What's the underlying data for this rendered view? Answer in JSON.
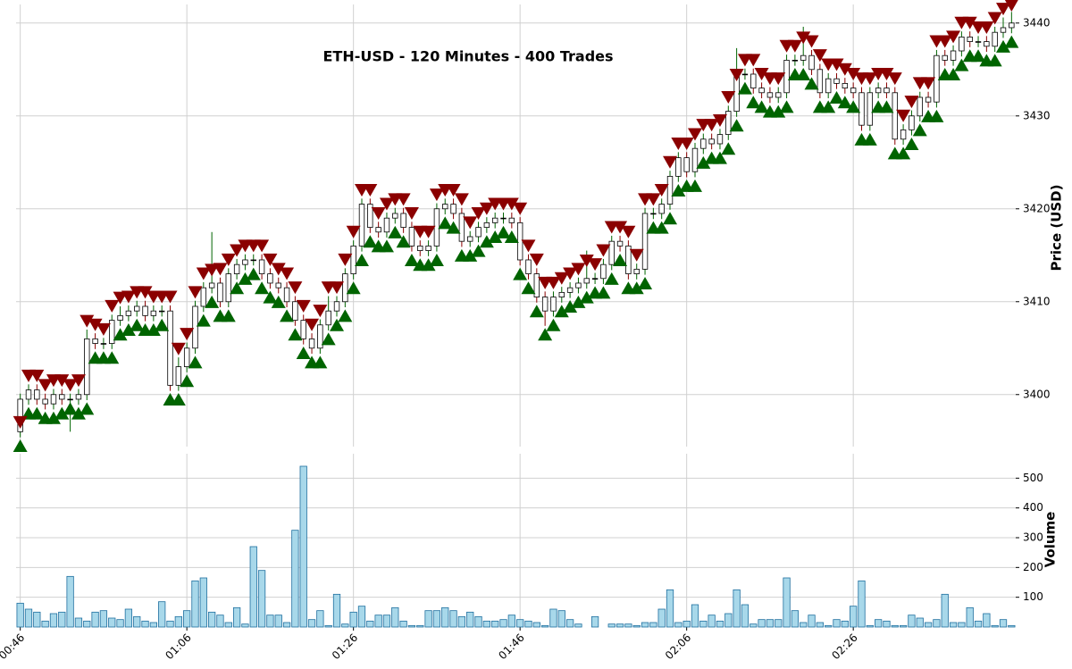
{
  "chart_data": [
    {
      "type": "candlestick",
      "title": "ETH-USD - 120 Minutes - 400 Trades",
      "ylabel": "Price (USD)",
      "ylim": [
        3394.4,
        3442
      ],
      "yticks": [
        3400,
        3410,
        3420,
        3430,
        3440
      ],
      "grid": true,
      "body_color": "#ffffff",
      "edge_color": "#000000",
      "up_color": "#006400",
      "down_color": "#8b0000",
      "open": [
        3396,
        3399.5,
        3400.5,
        3399.5,
        3399,
        3400,
        3399.5,
        3399.5,
        3400,
        3406,
        3405.5,
        3405.5,
        3408,
        3408.5,
        3409,
        3409.5,
        3408.5,
        3409,
        3409,
        3401,
        3403,
        3405,
        3409.5,
        3411.5,
        3412,
        3410,
        3413,
        3414,
        3414.5,
        3414.5,
        3413,
        3412,
        3411.5,
        3410,
        3408,
        3406,
        3405,
        3407.5,
        3409,
        3410,
        3413,
        3416,
        3420.5,
        3418,
        3417.5,
        3419,
        3419.5,
        3418,
        3416,
        3415.5,
        3416,
        3420,
        3420.5,
        3419.5,
        3416.5,
        3417,
        3418,
        3418.5,
        3419,
        3419,
        3418.5,
        3414.5,
        3413,
        3410.5,
        3409,
        3410.5,
        3411,
        3411.5,
        3412,
        3412.5,
        3412.5,
        3414,
        3416.5,
        3416,
        3413,
        3413.5,
        3419.5,
        3419.5,
        3420.5,
        3423.5,
        3425.5,
        3424,
        3426.5,
        3427.5,
        3427,
        3428,
        3430.5,
        3434.5,
        3434.5,
        3433,
        3432.5,
        3432,
        3432.5,
        3436,
        3436,
        3436.5,
        3435,
        3432.5,
        3434,
        3433.5,
        3433,
        3432.5,
        3429,
        3432.5,
        3433,
        3432.5,
        3427.5,
        3428.5,
        3430,
        3432,
        3431.5,
        3436.5,
        3436,
        3437,
        3438.5,
        3438,
        3438,
        3437.5,
        3439,
        3439.5
      ],
      "high": [
        3400.1,
        3401.1,
        3401.1,
        3400.1,
        3400.6,
        3400.6,
        3400.1,
        3400.6,
        3407,
        3406.6,
        3406.1,
        3408.6,
        3409.5,
        3409.6,
        3410.1,
        3410.1,
        3409.6,
        3409.6,
        3409.6,
        3404,
        3405.6,
        3410.1,
        3412.1,
        3417.5,
        3412.6,
        3413.6,
        3414.6,
        3415.1,
        3415.1,
        3415.1,
        3413.6,
        3412.6,
        3412.1,
        3410.6,
        3408.6,
        3406.6,
        3408.1,
        3410.6,
        3410.6,
        3413.6,
        3416.6,
        3421.1,
        3421.1,
        3418.6,
        3419.6,
        3420.1,
        3420.1,
        3418.6,
        3416.6,
        3416.6,
        3420.6,
        3421.1,
        3421.1,
        3420.1,
        3417.6,
        3418.6,
        3419.1,
        3419.6,
        3419.6,
        3419.6,
        3419.1,
        3415.1,
        3413.6,
        3411.1,
        3411.1,
        3411.6,
        3412.1,
        3412.6,
        3415.5,
        3413.1,
        3414.6,
        3417.1,
        3417.1,
        3416.6,
        3414.1,
        3420.1,
        3420.1,
        3421.1,
        3424.1,
        3426.1,
        3426.1,
        3427.1,
        3428.1,
        3428.1,
        3428.6,
        3431.1,
        3437.3,
        3435.1,
        3435.1,
        3433.6,
        3433.1,
        3433.1,
        3436.6,
        3436.6,
        3439.6,
        3437.1,
        3435.6,
        3434.6,
        3434.6,
        3434.1,
        3433.6,
        3433.1,
        3433.1,
        3433.6,
        3433.6,
        3433.1,
        3429.1,
        3430.6,
        3432.6,
        3432.6,
        3437.1,
        3437.1,
        3437.6,
        3439.1,
        3439.1,
        3438.6,
        3438.6,
        3439.6,
        3440.6,
        3441.2
      ],
      "low": [
        3395.4,
        3398.9,
        3398.9,
        3398.4,
        3398.4,
        3398.9,
        3396,
        3398.9,
        3399.4,
        3404.9,
        3404.9,
        3404.9,
        3407.4,
        3407.9,
        3408.4,
        3407.9,
        3407.9,
        3408.4,
        3400.4,
        3400.4,
        3402.4,
        3404.4,
        3408.9,
        3410.9,
        3409.4,
        3409.4,
        3412.4,
        3413.4,
        3413.9,
        3412.4,
        3411.4,
        3410.9,
        3409.4,
        3407.4,
        3405.4,
        3404.4,
        3404.4,
        3406.9,
        3408.4,
        3409.4,
        3412.4,
        3415.4,
        3417.4,
        3416.9,
        3416.9,
        3418.4,
        3417.4,
        3415.4,
        3414.9,
        3414.9,
        3415.4,
        3419.4,
        3418.9,
        3415.9,
        3415.9,
        3416.4,
        3417.4,
        3417.9,
        3418.4,
        3417.9,
        3413.9,
        3412.4,
        3409.9,
        3407.4,
        3408.4,
        3409.9,
        3410.4,
        3410.9,
        3411.4,
        3411.9,
        3411.9,
        3413.4,
        3415.4,
        3412.4,
        3412.4,
        3412.9,
        3418.9,
        3418.9,
        3419.9,
        3422.9,
        3423.4,
        3423.4,
        3425.9,
        3426.4,
        3426.4,
        3427.4,
        3429.9,
        3433.9,
        3432.4,
        3431.9,
        3431.4,
        3431.4,
        3431.9,
        3435.4,
        3435.4,
        3434.4,
        3431.9,
        3431.9,
        3432.9,
        3432.4,
        3431.9,
        3428.4,
        3428.4,
        3431.9,
        3431.9,
        3426.9,
        3426.9,
        3427.9,
        3429.4,
        3430.9,
        3430.9,
        3435.4,
        3435.4,
        3436.4,
        3437.4,
        3437.4,
        3436.9,
        3436.9,
        3438.4,
        3438.9
      ],
      "close": [
        3399.5,
        3400.5,
        3399.5,
        3399,
        3400,
        3399.5,
        3399.5,
        3400,
        3406,
        3405.5,
        3405.5,
        3408,
        3408.5,
        3409,
        3409.5,
        3408.5,
        3409,
        3409,
        3401,
        3403,
        3405,
        3409.5,
        3411.5,
        3412,
        3410,
        3413,
        3414,
        3414.5,
        3414.5,
        3413,
        3412,
        3411.5,
        3410,
        3408,
        3406,
        3405,
        3407.5,
        3409,
        3410,
        3413,
        3416,
        3420.5,
        3418,
        3417.5,
        3419,
        3419.5,
        3418,
        3416,
        3415.5,
        3416,
        3420,
        3420.5,
        3419.5,
        3416.5,
        3417,
        3418,
        3418.5,
        3419,
        3419,
        3418.5,
        3414.5,
        3413,
        3410.5,
        3409,
        3410.5,
        3411,
        3411.5,
        3412,
        3412.5,
        3412.5,
        3414,
        3416.5,
        3416,
        3413,
        3413.5,
        3419.5,
        3419.5,
        3420.5,
        3423.5,
        3425.5,
        3424,
        3426.5,
        3427.5,
        3427,
        3428,
        3430.5,
        3434.5,
        3434.5,
        3433,
        3432.5,
        3432,
        3432.5,
        3436,
        3436,
        3436.5,
        3435,
        3432.5,
        3434,
        3433.5,
        3433,
        3432.5,
        3429,
        3432.5,
        3433,
        3432.5,
        3427.5,
        3428.5,
        3430,
        3432,
        3431.5,
        3436.5,
        3436,
        3437,
        3438.5,
        3438,
        3438,
        3437.5,
        3439,
        3439.5,
        3440
      ],
      "series": [
        {
          "marker": "up",
          "color": "#006400",
          "values": [
            3394.4,
            3397.9,
            3397.9,
            3397.4,
            3397.4,
            3397.9,
            3398.4,
            3397.9,
            3398.4,
            3403.9,
            3403.9,
            3403.9,
            3406.4,
            3406.9,
            3407.4,
            3406.9,
            3406.9,
            3407.4,
            3399.4,
            3399.4,
            3401.4,
            3403.4,
            3407.9,
            3409.9,
            3408.4,
            3408.4,
            3411.4,
            3412.4,
            3412.9,
            3411.4,
            3410.4,
            3409.9,
            3408.4,
            3406.4,
            3404.4,
            3403.4,
            3403.4,
            3405.9,
            3407.4,
            3408.4,
            3411.4,
            3414.4,
            3416.4,
            3415.9,
            3415.9,
            3417.4,
            3416.4,
            3414.4,
            3413.9,
            3413.9,
            3414.4,
            3418.4,
            3417.9,
            3414.9,
            3414.9,
            3415.4,
            3416.4,
            3416.9,
            3417.4,
            3416.9,
            3412.9,
            3411.4,
            3408.9,
            3406.4,
            3407.4,
            3408.9,
            3409.4,
            3409.9,
            3410.4,
            3410.9,
            3410.9,
            3412.4,
            3414.4,
            3411.4,
            3411.4,
            3411.9,
            3417.9,
            3417.9,
            3418.9,
            3421.9,
            3422.4,
            3422.4,
            3424.9,
            3425.4,
            3425.4,
            3426.4,
            3428.9,
            3432.9,
            3431.4,
            3430.9,
            3430.4,
            3430.4,
            3430.9,
            3434.4,
            3434.4,
            3433.4,
            3430.9,
            3430.9,
            3431.9,
            3431.4,
            3430.9,
            3427.4,
            3427.4,
            3430.9,
            3430.9,
            3425.9,
            3425.9,
            3426.9,
            3428.4,
            3429.9,
            3429.9,
            3434.4,
            3434.4,
            3435.4,
            3436.4,
            3436.4,
            3435.9,
            3435.9,
            3437.4,
            3437.9
          ]
        },
        {
          "marker": "down",
          "color": "#8b0000",
          "values": [
            3397.1,
            3402.1,
            3402.1,
            3401.1,
            3401.6,
            3401.6,
            3401.1,
            3401.6,
            3408,
            3407.6,
            3407.1,
            3409.6,
            3410.5,
            3410.6,
            3411.1,
            3411.1,
            3410.6,
            3410.6,
            3410.6,
            3405,
            3406.6,
            3411.1,
            3413.1,
            3413.5,
            3413.6,
            3414.6,
            3415.6,
            3416.1,
            3416.1,
            3416.1,
            3414.6,
            3413.6,
            3413.1,
            3411.6,
            3409.6,
            3407.6,
            3409.1,
            3411.6,
            3411.6,
            3414.6,
            3417.6,
            3422.1,
            3422.1,
            3419.6,
            3420.6,
            3421.1,
            3421.1,
            3419.6,
            3417.6,
            3417.6,
            3421.6,
            3422.1,
            3422.1,
            3421.1,
            3418.6,
            3419.6,
            3420.1,
            3420.6,
            3420.6,
            3420.6,
            3420.1,
            3416.1,
            3414.6,
            3412.1,
            3412.1,
            3412.6,
            3413.1,
            3413.6,
            3414.5,
            3414.1,
            3415.6,
            3418.1,
            3418.1,
            3417.6,
            3415.1,
            3421.1,
            3421.1,
            3422.1,
            3425.1,
            3427.1,
            3427.1,
            3428.1,
            3429.1,
            3429.1,
            3429.6,
            3432.1,
            3434.5,
            3436.1,
            3436.1,
            3434.6,
            3434.1,
            3434.1,
            3437.6,
            3437.6,
            3438.5,
            3438.1,
            3436.6,
            3435.6,
            3435.6,
            3435.1,
            3434.6,
            3434.1,
            3434.1,
            3434.6,
            3434.6,
            3434.1,
            3430.1,
            3431.6,
            3433.6,
            3433.6,
            3438.1,
            3438.1,
            3438.6,
            3440.1,
            3440.1,
            3439.6,
            3439.6,
            3440.6,
            3441.6,
            3442
          ]
        }
      ]
    },
    {
      "type": "bar",
      "ylabel": "Volume",
      "ylim": [
        0,
        582
      ],
      "yticks": [
        100,
        200,
        300,
        400,
        500
      ],
      "grid": true,
      "color": "#a8d8ea",
      "edge_color": "#1f6f9f",
      "categories": [
        "00:46",
        null,
        null,
        null,
        null,
        null,
        null,
        null,
        null,
        null,
        null,
        null,
        null,
        null,
        null,
        null,
        null,
        null,
        null,
        null,
        "01:06",
        null,
        null,
        null,
        null,
        null,
        null,
        null,
        null,
        null,
        null,
        null,
        null,
        null,
        null,
        null,
        null,
        null,
        null,
        null,
        "01:26",
        null,
        null,
        null,
        null,
        null,
        null,
        null,
        null,
        null,
        null,
        null,
        null,
        null,
        null,
        null,
        null,
        null,
        null,
        null,
        "01:46",
        null,
        null,
        null,
        null,
        null,
        null,
        null,
        null,
        null,
        null,
        null,
        null,
        null,
        null,
        null,
        null,
        null,
        null,
        null,
        "02:06",
        null,
        null,
        null,
        null,
        null,
        null,
        null,
        null,
        null,
        null,
        null,
        null,
        null,
        null,
        null,
        null,
        null,
        null,
        null,
        "02:26",
        null,
        null,
        null,
        null,
        null,
        null,
        null,
        null,
        null,
        null,
        null,
        null,
        null,
        null,
        null,
        null,
        null,
        null,
        null
      ],
      "values": [
        80,
        60,
        50,
        20,
        45,
        50,
        170,
        30,
        20,
        50,
        55,
        30,
        25,
        60,
        35,
        20,
        15,
        85,
        20,
        35,
        55,
        155,
        165,
        50,
        40,
        15,
        65,
        10,
        270,
        190,
        40,
        40,
        15,
        325,
        540,
        25,
        55,
        5,
        110,
        10,
        50,
        70,
        20,
        40,
        40,
        65,
        20,
        5,
        5,
        55,
        55,
        65,
        55,
        35,
        50,
        35,
        20,
        20,
        25,
        40,
        25,
        20,
        15,
        5,
        60,
        55,
        25,
        10,
        0,
        35,
        0,
        10,
        10,
        10,
        5,
        15,
        15,
        60,
        125,
        15,
        20,
        75,
        20,
        40,
        20,
        45,
        125,
        75,
        10,
        25,
        25,
        25,
        165,
        55,
        15,
        40,
        15,
        5,
        25,
        20,
        70,
        155,
        5,
        25,
        20,
        5,
        5,
        40,
        30,
        15,
        25,
        110,
        15,
        15,
        65,
        20,
        45,
        5,
        25,
        5
      ]
    }
  ]
}
